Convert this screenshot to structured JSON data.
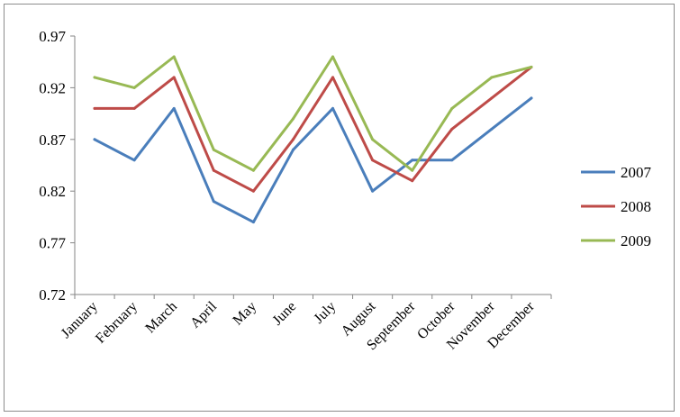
{
  "chart_data": {
    "type": "line",
    "categories": [
      "January",
      "February",
      "March",
      "April",
      "May",
      "June",
      "July",
      "August",
      "September",
      "October",
      "November",
      "December"
    ],
    "ylim": [
      0.72,
      0.97
    ],
    "yticks": [
      "0.72",
      "0.77",
      "0.82",
      "0.87",
      "0.92",
      "0.97"
    ],
    "grid": false,
    "legend_position": "right",
    "series": [
      {
        "name": "2007",
        "color": "#4A7EBB",
        "values": [
          0.87,
          0.85,
          0.9,
          0.81,
          0.79,
          0.86,
          0.9,
          0.82,
          0.85,
          0.85,
          0.88,
          0.91
        ]
      },
      {
        "name": "2008",
        "color": "#BE4B48",
        "values": [
          0.9,
          0.9,
          0.93,
          0.84,
          0.82,
          0.87,
          0.93,
          0.85,
          0.83,
          0.88,
          0.91,
          0.94
        ]
      },
      {
        "name": "2009",
        "color": "#98B954",
        "values": [
          0.93,
          0.92,
          0.95,
          0.86,
          0.84,
          0.89,
          0.95,
          0.87,
          0.84,
          0.9,
          0.93,
          0.94
        ]
      }
    ]
  }
}
